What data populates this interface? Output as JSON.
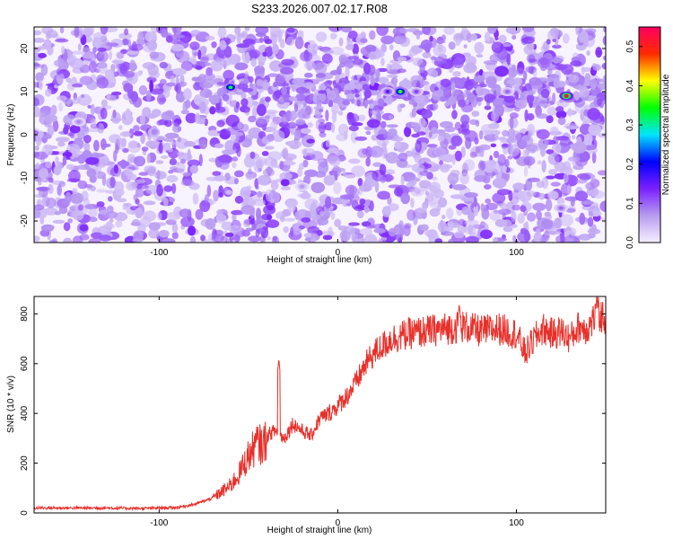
{
  "figure": {
    "title": "S233.2026.007.02.17.R08"
  },
  "chart_data": [
    {
      "type": "heatmap",
      "xlabel": "Height of straight line (km)",
      "ylabel": "Frequency (Hz)",
      "xlim": [
        -170,
        150
      ],
      "ylim": [
        -25,
        25
      ],
      "xticks": [
        -100,
        0,
        100
      ],
      "yticks": [
        -20,
        -10,
        0,
        10,
        20
      ],
      "colorbar": {
        "label": "Normalized spectral amplitude",
        "range": [
          0.0,
          0.55
        ],
        "ticks": [
          0.0,
          0.1,
          0.2,
          0.3,
          0.4,
          0.5
        ],
        "colors": [
          "#f5f0ff",
          "#b89cf0",
          "#7a20ff",
          "#0000ff",
          "#00e5ff",
          "#00ff00",
          "#ffff00",
          "#ff2a00",
          "#ff0060"
        ]
      },
      "band": {
        "frequency": 10,
        "x_range": [
          -70,
          150
        ],
        "hotspots": [
          {
            "x": -60,
            "y": 11,
            "value": 0.33
          },
          {
            "x": 35,
            "y": 10,
            "value": 0.36
          },
          {
            "x": 128,
            "y": 9,
            "value": 0.55
          },
          {
            "x": 28,
            "y": 10,
            "value": 0.15
          },
          {
            "x": 44,
            "y": 10,
            "value": 0.12
          },
          {
            "x": 95,
            "y": 10,
            "value": 0.1
          },
          {
            "x": -145,
            "y": 3,
            "value": 0.08
          },
          {
            "x": 125,
            "y": -17,
            "value": 0.1
          },
          {
            "x": -20,
            "y": -12,
            "value": 0.07
          }
        ]
      }
    },
    {
      "type": "line",
      "xlabel": "Height of straight line (km)",
      "ylabel": "SNR (10 * v/v)",
      "xlim": [
        -170,
        150
      ],
      "ylim": [
        0,
        870
      ],
      "xticks": [
        -100,
        0,
        100
      ],
      "yticks": [
        0,
        200,
        400,
        600,
        800
      ],
      "color": "#e8302a",
      "series": [
        {
          "x": [
            -170,
            -150,
            -130,
            -110,
            -90,
            -80,
            -70,
            -60,
            -55,
            -50,
            -45,
            -42,
            -40,
            -38,
            -35,
            -30,
            -25,
            -20,
            -15,
            -10,
            -5,
            0,
            5,
            10,
            15,
            20,
            25,
            30,
            40,
            50,
            60,
            70,
            80,
            90,
            100,
            105,
            110,
            115,
            120,
            125,
            130,
            135,
            140,
            145,
            150
          ],
          "y": [
            20,
            20,
            20,
            18,
            22,
            35,
            60,
            110,
            160,
            230,
            280,
            270,
            300,
            320,
            330,
            300,
            360,
            330,
            310,
            380,
            400,
            430,
            470,
            520,
            590,
            640,
            670,
            700,
            720,
            730,
            740,
            750,
            730,
            740,
            720,
            640,
            700,
            740,
            720,
            730,
            700,
            750,
            740,
            800,
            780
          ]
        }
      ],
      "spikes": [
        {
          "x": -33,
          "y": 620
        },
        {
          "x": 68,
          "y": 840
        },
        {
          "x": 145,
          "y": 860
        }
      ]
    }
  ]
}
